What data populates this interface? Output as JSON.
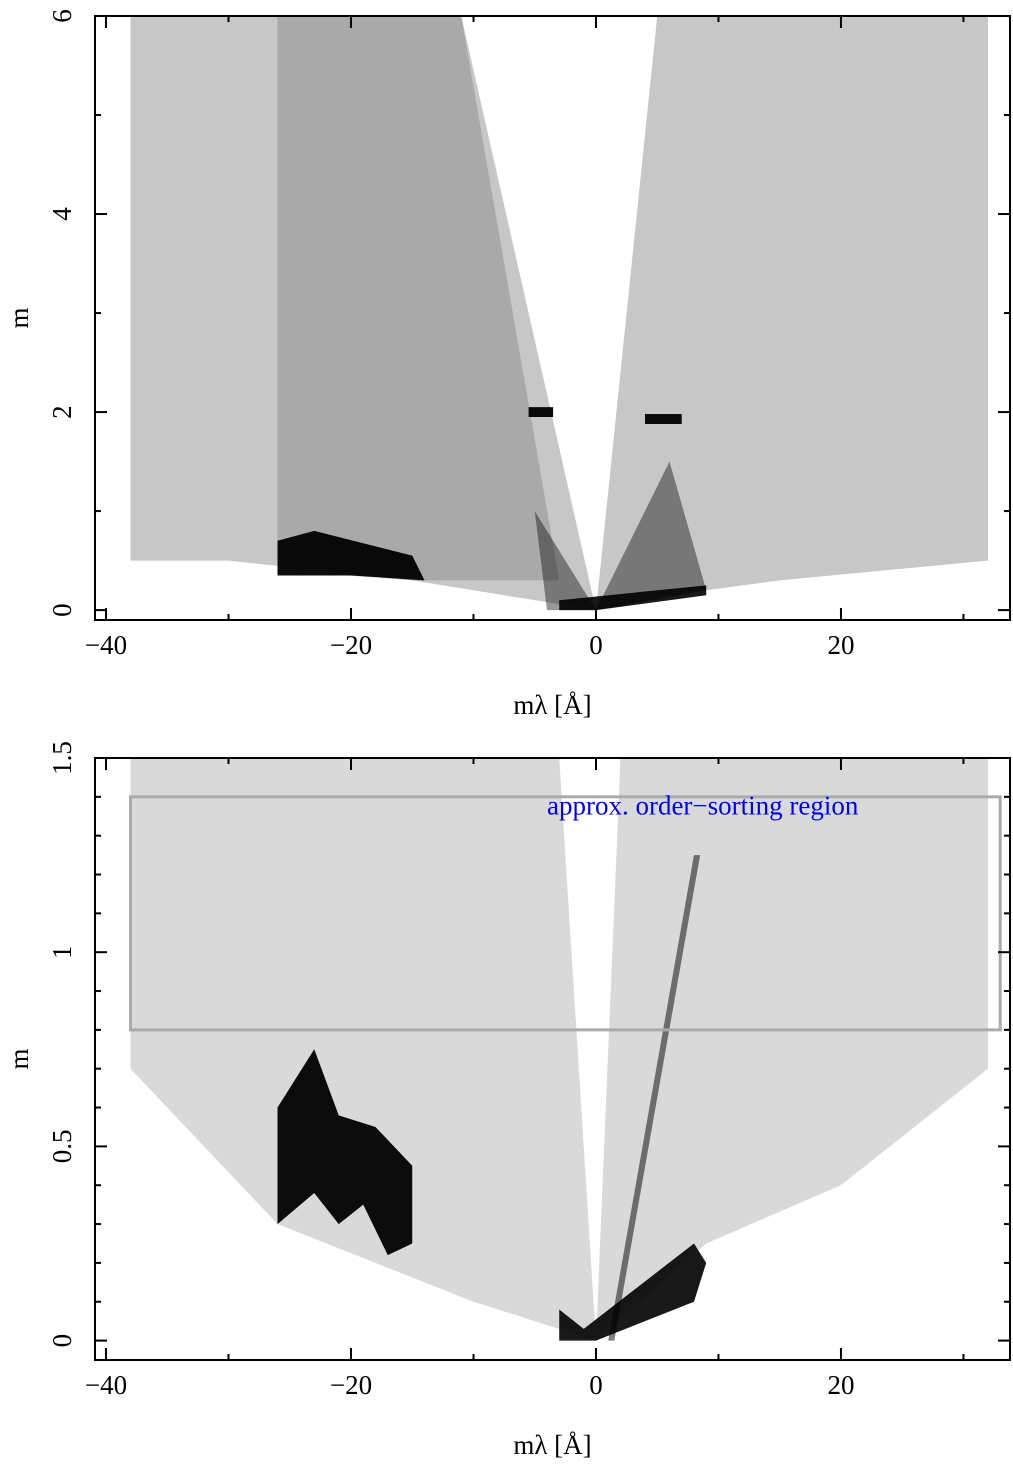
{
  "chart_data": [
    {
      "type": "density",
      "xlabel": "mλ [Å]",
      "ylabel": "m",
      "xlim": [
        -40.9,
        33.8
      ],
      "ylim": [
        -0.1,
        6
      ],
      "xticks": [
        {
          "value": -40,
          "label": "−40"
        },
        {
          "value": -20,
          "label": "−20"
        },
        0,
        20
      ],
      "xminor_ticks": [
        -30,
        -10,
        10,
        30
      ],
      "yticks": [
        0,
        2,
        4,
        6
      ],
      "yminor_ticks": [
        1,
        3,
        5
      ],
      "color": "#000000",
      "regions": [
        {
          "x": [
            -38,
            -38,
            -11,
            0,
            -15,
            -30
          ],
          "y": [
            0.5,
            6,
            6,
            0,
            0.3,
            0.5
          ],
          "opacity": 0.22
        },
        {
          "x": [
            0,
            5,
            32,
            32,
            15,
            9
          ],
          "y": [
            0,
            6,
            6,
            0.5,
            0.3,
            0.2
          ],
          "opacity": 0.22
        },
        {
          "x": [
            -26,
            -26,
            -11,
            -3,
            -15
          ],
          "y": [
            0.4,
            6,
            6,
            0.3,
            0.3
          ],
          "opacity": 0.15
        },
        {
          "x": [
            -5,
            0,
            -4
          ],
          "y": [
            1,
            0,
            0
          ],
          "opacity": 0.4
        },
        {
          "x": [
            0,
            6,
            9
          ],
          "y": [
            0,
            1.5,
            0.2
          ],
          "opacity": 0.4
        },
        {
          "x": [
            -26,
            -23,
            -15,
            -14,
            -20,
            -26
          ],
          "y": [
            0.7,
            0.8,
            0.55,
            0.3,
            0.35,
            0.35
          ],
          "opacity": 0.95
        },
        {
          "x": [
            -5.5,
            -3.5,
            -3.5,
            -5.5
          ],
          "y": [
            2.05,
            2.05,
            1.95,
            1.95
          ],
          "opacity": 0.95
        },
        {
          "x": [
            4,
            7,
            7,
            4
          ],
          "y": [
            1.98,
            1.98,
            1.88,
            1.88
          ],
          "opacity": 0.95
        },
        {
          "x": [
            -3,
            0,
            9,
            9,
            -3
          ],
          "y": [
            0,
            0,
            0.15,
            0.25,
            0.1
          ],
          "opacity": 0.9
        }
      ]
    },
    {
      "type": "density",
      "xlabel": "mλ [Å]",
      "ylabel": "m",
      "xlim": [
        -40.9,
        33.8
      ],
      "ylim": [
        -0.05,
        1.5
      ],
      "xticks": [
        {
          "value": -40,
          "label": "−40"
        },
        {
          "value": -20,
          "label": "−20"
        },
        0,
        20
      ],
      "xminor_ticks": [
        -30,
        -10,
        10,
        30
      ],
      "yticks": [
        0,
        0.5,
        1,
        1.5
      ],
      "yminor_ticks": [
        0.1,
        0.2,
        0.3,
        0.4,
        0.6,
        0.7,
        0.8,
        0.9,
        1.1,
        1.2,
        1.3,
        1.4
      ],
      "color": "#000000",
      "regions": [
        {
          "x": [
            -38,
            -38,
            -3,
            0,
            -10,
            -26
          ],
          "y": [
            0.7,
            1.5,
            1.5,
            0,
            0.1,
            0.3
          ],
          "opacity": 0.15
        },
        {
          "x": [
            2,
            32,
            32,
            20,
            9,
            0
          ],
          "y": [
            1.5,
            1.5,
            0.7,
            0.4,
            0.25,
            0
          ],
          "opacity": 0.15
        },
        {
          "x": [
            1,
            8,
            8.5,
            1.5
          ],
          "y": [
            0,
            1.25,
            1.25,
            0
          ],
          "opacity": 0.5
        },
        {
          "x": [
            -26,
            -23,
            -21,
            -18,
            -15,
            -15,
            -17,
            -19,
            -21,
            -23,
            -26
          ],
          "y": [
            0.6,
            0.75,
            0.58,
            0.55,
            0.45,
            0.25,
            0.22,
            0.35,
            0.3,
            0.38,
            0.3
          ],
          "opacity": 0.95
        },
        {
          "x": [
            -3,
            -1,
            8,
            9,
            8,
            0,
            -3
          ],
          "y": [
            0.08,
            0.03,
            0.25,
            0.2,
            0.1,
            0,
            0
          ],
          "opacity": 0.9
        }
      ],
      "box": {
        "x": [
          -38,
          33
        ],
        "y": [
          0.8,
          1.4
        ],
        "color": "#aaaaaa"
      },
      "annotation": {
        "text": "approx. order−sorting region",
        "x": -4,
        "y": 1.37,
        "color": "#0000ff"
      }
    }
  ]
}
